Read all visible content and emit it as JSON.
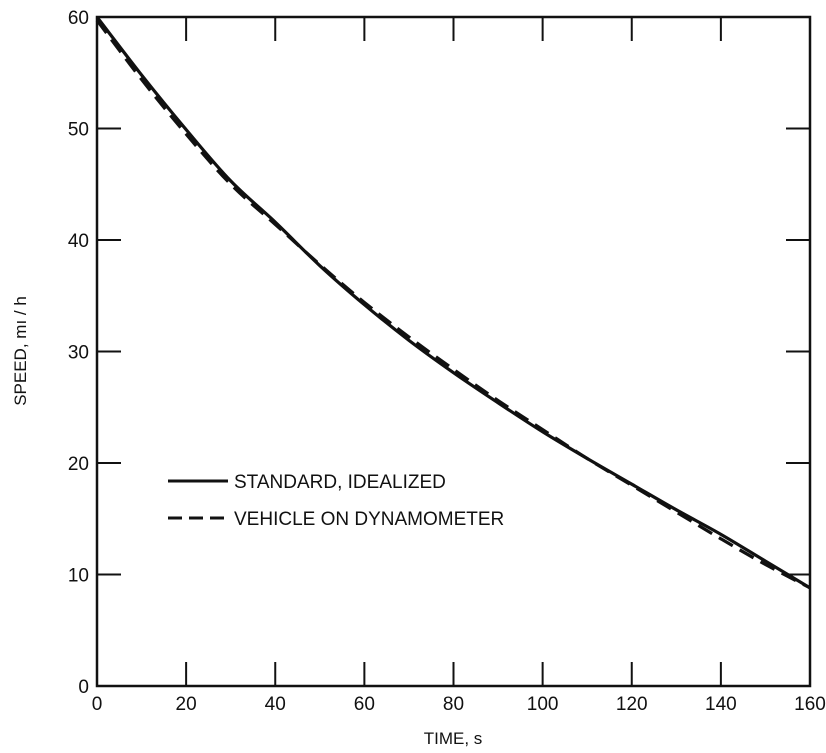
{
  "chart_data": {
    "type": "line",
    "title": "",
    "xlabel": "TIME, s",
    "ylabel": "SPEED, mı / h",
    "xlim": [
      0,
      160
    ],
    "ylim": [
      0,
      60
    ],
    "xticks": [
      0,
      20,
      40,
      60,
      80,
      100,
      120,
      140,
      160
    ],
    "yticks": [
      0,
      10,
      20,
      30,
      40,
      50,
      60
    ],
    "grid": false,
    "legend_position": "center-left",
    "series": [
      {
        "name": "STANDARD, IDEALIZED",
        "style": "solid",
        "color": "#111111",
        "x": [
          0,
          10,
          20,
          30,
          40,
          50,
          60,
          70,
          80,
          90,
          100,
          110,
          120,
          130,
          140,
          150,
          160
        ],
        "y": [
          60,
          54.8,
          49.9,
          45.3,
          41.6,
          37.7,
          34.2,
          31.0,
          28.1,
          25.4,
          22.8,
          20.4,
          18.1,
          15.8,
          13.6,
          11.2,
          8.8
        ]
      },
      {
        "name": "VEHICLE ON DYNAMOMETER",
        "style": "dashed",
        "color": "#111111",
        "x": [
          0,
          10,
          20,
          30,
          40,
          50,
          60,
          70,
          80,
          90,
          100,
          110,
          120,
          130,
          140,
          150,
          160
        ],
        "y": [
          59.7,
          54.4,
          49.5,
          45.0,
          41.4,
          37.8,
          34.4,
          31.3,
          28.4,
          25.6,
          23.0,
          20.4,
          18.0,
          15.6,
          13.2,
          10.9,
          8.8
        ]
      }
    ]
  }
}
